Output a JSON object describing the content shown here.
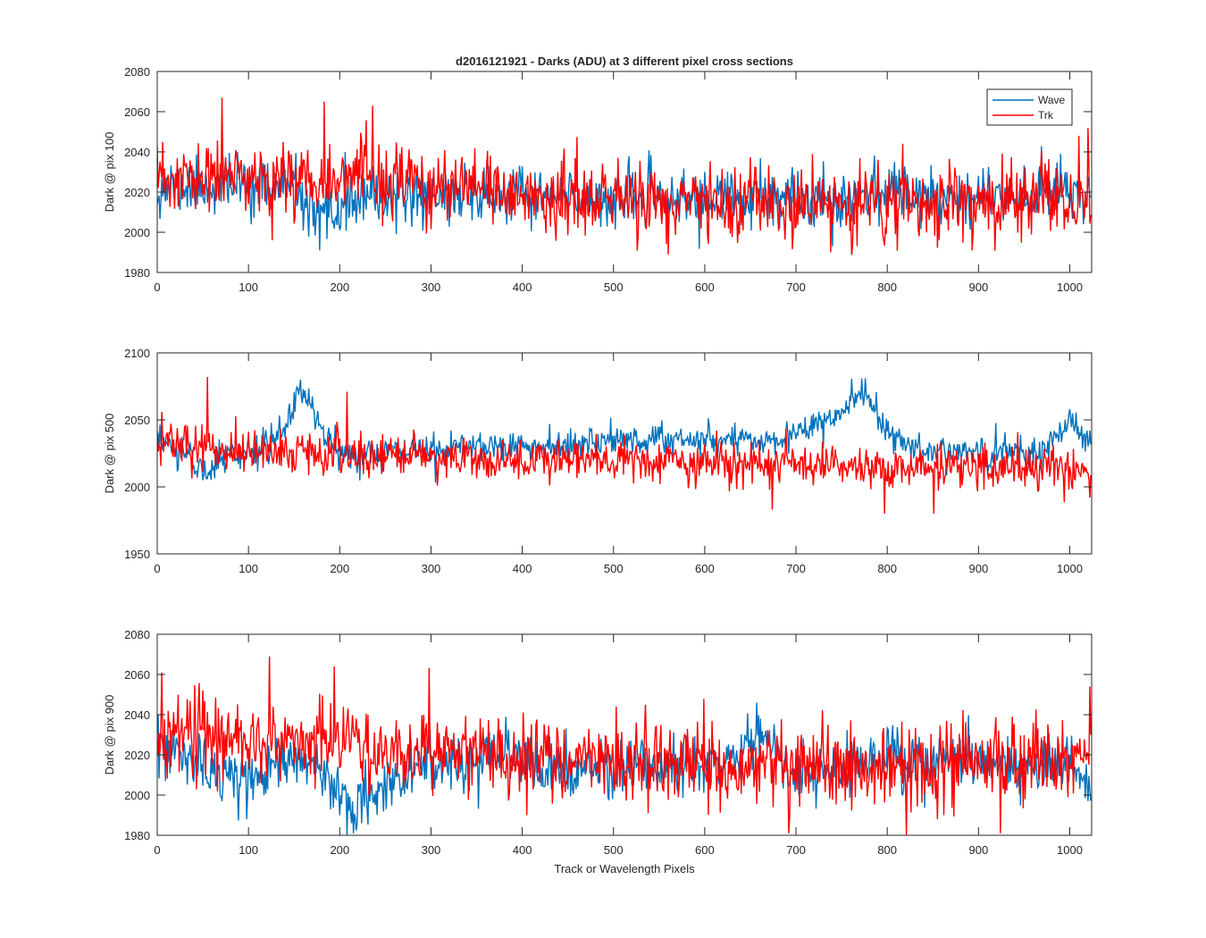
{
  "figure": {
    "title": "d2016121921 - Darks (ADU) at 3 different pixel cross sections",
    "xlabel": "Track or Wavelength Pixels",
    "legend": {
      "placement": "top-right",
      "entries": [
        "Wave",
        "Trk"
      ]
    },
    "colors": {
      "Wave": "#0072bd",
      "Trk": "#ff0000",
      "axes": "#262626",
      "background": "#ffffff"
    }
  },
  "chart_data": [
    {
      "type": "line",
      "title": "d2016121921 - Darks (ADU) at 3 different pixel cross sections",
      "xlabel": "",
      "ylabel": "Dark @ pix 100",
      "xlim": [
        0,
        1024
      ],
      "ylim": [
        1980,
        2080
      ],
      "xticks": [
        "0",
        "100",
        "200",
        "300",
        "400",
        "500",
        "600",
        "700",
        "800",
        "900",
        "1000"
      ],
      "yticks": [
        "1980",
        "2000",
        "2020",
        "2040",
        "2060",
        "2080"
      ],
      "grid": false,
      "legend": "top-right",
      "series": [
        {
          "name": "Wave",
          "noise": 7,
          "seed": 11,
          "baseline": [
            [
              0,
              2022
            ],
            [
              100,
              2024
            ],
            [
              150,
              2022
            ],
            [
              165,
              2012
            ],
            [
              180,
              2004
            ],
            [
              195,
              2010
            ],
            [
              210,
              2016
            ],
            [
              300,
              2019
            ],
            [
              400,
              2018
            ],
            [
              500,
              2017
            ],
            [
              600,
              2016
            ],
            [
              700,
              2016
            ],
            [
              800,
              2021
            ],
            [
              900,
              2018
            ],
            [
              1000,
              2022
            ],
            [
              1024,
              2018
            ]
          ],
          "extremes": [
            [
              178,
              1991
            ],
            [
              206,
              2040
            ],
            [
              990,
              2039
            ],
            [
              1015,
              2004
            ],
            [
              740,
              1993
            ]
          ]
        },
        {
          "name": "Trk",
          "noise": 9,
          "seed": 23,
          "baseline": [
            [
              0,
              2025
            ],
            [
              100,
              2027
            ],
            [
              200,
              2028
            ],
            [
              300,
              2022
            ],
            [
              400,
              2018
            ],
            [
              500,
              2016
            ],
            [
              600,
              2014
            ],
            [
              700,
              2013
            ],
            [
              800,
              2014
            ],
            [
              900,
              2015
            ],
            [
              1024,
              2016
            ]
          ],
          "extremes": [
            [
              71,
              2067
            ],
            [
              183,
              2065
            ],
            [
              236,
              2063
            ],
            [
              126,
              1996
            ],
            [
              1020,
              2052
            ],
            [
              1010,
              2048
            ],
            [
              738,
              1990
            ],
            [
              893,
              1991
            ]
          ]
        }
      ]
    },
    {
      "type": "line",
      "title": "",
      "xlabel": "",
      "ylabel": "Dark @ pix 500",
      "xlim": [
        0,
        1024
      ],
      "ylim": [
        1950,
        2100
      ],
      "xticks": [
        "0",
        "100",
        "200",
        "300",
        "400",
        "500",
        "600",
        "700",
        "800",
        "900",
        "1000"
      ],
      "yticks": [
        "1950",
        "2000",
        "2050",
        "2100"
      ],
      "grid": false,
      "series": [
        {
          "name": "Wave",
          "noise": 6,
          "seed": 31,
          "baseline": [
            [
              0,
              2035
            ],
            [
              30,
              2025
            ],
            [
              55,
              2012
            ],
            [
              80,
              2024
            ],
            [
              120,
              2030
            ],
            [
              140,
              2042
            ],
            [
              150,
              2062
            ],
            [
              160,
              2072
            ],
            [
              170,
              2060
            ],
            [
              185,
              2035
            ],
            [
              200,
              2024
            ],
            [
              300,
              2027
            ],
            [
              350,
              2033
            ],
            [
              400,
              2030
            ],
            [
              500,
              2035
            ],
            [
              600,
              2035
            ],
            [
              650,
              2036
            ],
            [
              700,
              2038
            ],
            [
              730,
              2048
            ],
            [
              750,
              2058
            ],
            [
              765,
              2066
            ],
            [
              780,
              2066
            ],
            [
              795,
              2048
            ],
            [
              820,
              2030
            ],
            [
              900,
              2024
            ],
            [
              960,
              2025
            ],
            [
              990,
              2040
            ],
            [
              1000,
              2048
            ],
            [
              1024,
              2030
            ]
          ],
          "extremes": [
            [
              157,
              2080
            ],
            [
              772,
              2081
            ],
            [
              1000,
              2058
            ],
            [
              50,
              2005
            ],
            [
              305,
              2003
            ]
          ]
        },
        {
          "name": "Trk",
          "noise": 8,
          "seed": 47,
          "baseline": [
            [
              0,
              2036
            ],
            [
              50,
              2028
            ],
            [
              150,
              2026
            ],
            [
              300,
              2022
            ],
            [
              400,
              2019
            ],
            [
              500,
              2020
            ],
            [
              600,
              2018
            ],
            [
              700,
              2017
            ],
            [
              800,
              2015
            ],
            [
              900,
              2016
            ],
            [
              1024,
              2012
            ]
          ],
          "extremes": [
            [
              55,
              2082
            ],
            [
              5,
              2056
            ],
            [
              208,
              2071
            ],
            [
              674,
              1983
            ],
            [
              797,
              1980
            ],
            [
              851,
              1980
            ],
            [
              1022,
              1992
            ]
          ]
        }
      ]
    },
    {
      "type": "line",
      "title": "",
      "xlabel": "Track or Wavelength Pixels",
      "ylabel": "Dark @ pix 900",
      "xlim": [
        0,
        1024
      ],
      "ylim": [
        1980,
        2080
      ],
      "xticks": [
        "0",
        "100",
        "200",
        "300",
        "400",
        "500",
        "600",
        "700",
        "800",
        "900",
        "1000"
      ],
      "yticks": [
        "1980",
        "2000",
        "2020",
        "2040",
        "2060",
        "2080"
      ],
      "grid": false,
      "series": [
        {
          "name": "Wave",
          "noise": 7,
          "seed": 53,
          "baseline": [
            [
              0,
              2024
            ],
            [
              40,
              2016
            ],
            [
              70,
              2010
            ],
            [
              100,
              2006
            ],
            [
              130,
              2016
            ],
            [
              170,
              2016
            ],
            [
              200,
              2004
            ],
            [
              215,
              1994
            ],
            [
              240,
              2004
            ],
            [
              300,
              2016
            ],
            [
              400,
              2018
            ],
            [
              450,
              2010
            ],
            [
              500,
              2013
            ],
            [
              600,
              2016
            ],
            [
              650,
              2024
            ],
            [
              660,
              2032
            ],
            [
              680,
              2016
            ],
            [
              700,
              2008
            ],
            [
              800,
              2018
            ],
            [
              900,
              2017
            ],
            [
              1000,
              2016
            ],
            [
              1024,
              2008
            ]
          ],
          "extremes": [
            [
              213,
              1986
            ],
            [
              98,
              1988
            ],
            [
              657,
              2046
            ],
            [
              1020,
              1997
            ]
          ]
        },
        {
          "name": "Trk",
          "noise": 10,
          "seed": 67,
          "baseline": [
            [
              0,
              2030
            ],
            [
              100,
              2028
            ],
            [
              200,
              2026
            ],
            [
              300,
              2022
            ],
            [
              400,
              2018
            ],
            [
              500,
              2017
            ],
            [
              600,
              2016
            ],
            [
              700,
              2014
            ],
            [
              800,
              2014
            ],
            [
              900,
              2015
            ],
            [
              1024,
              2016
            ]
          ],
          "extremes": [
            [
              123,
              2069
            ],
            [
              194,
              2064
            ],
            [
              5,
              2061
            ],
            [
              692,
              1981
            ],
            [
              924,
              1981
            ],
            [
              1022,
              2054
            ],
            [
              855,
              1988
            ]
          ]
        }
      ]
    }
  ]
}
